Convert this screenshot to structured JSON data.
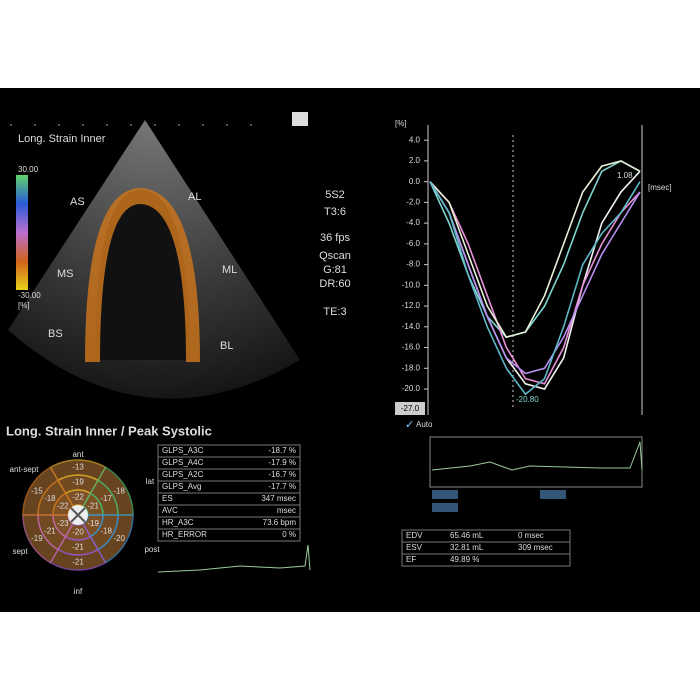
{
  "header": {
    "title": "Long. Strain Inner",
    "color_bar": {
      "max": "30.00",
      "min": "-30.00",
      "unit": "[%]"
    }
  },
  "segments": [
    "AS",
    "AL",
    "MS",
    "ML",
    "BS",
    "BL"
  ],
  "settings": [
    "5S2",
    "T3:6",
    "36 fps",
    "Qscan",
    "G:81",
    "DR:60",
    "TE:3"
  ],
  "bullseye": {
    "title": "Long. Strain Inner / Peak Systolic",
    "walls": [
      "ant",
      "lat",
      "post",
      "inf",
      "sept",
      "ant-sept"
    ],
    "outer": [
      -13,
      -18,
      -20,
      -21,
      -19,
      -15
    ],
    "mid": [
      -19,
      -17,
      -18,
      -21,
      -21,
      -18
    ],
    "inner": [
      -22,
      -21,
      -19,
      -20,
      -23,
      -22
    ]
  },
  "results_table": {
    "rows": [
      [
        "GLPS_A3C",
        "-18.7 %"
      ],
      [
        "GLPS_A4C",
        "-17.9 %"
      ],
      [
        "GLPS_A2C",
        "-16.7 %"
      ],
      [
        "GLPS_Avg",
        "-17.7 %"
      ],
      [
        "ES",
        "347 msec"
      ],
      [
        "AVC",
        "msec"
      ],
      [
        "HR_A3C",
        "73.6 bpm"
      ],
      [
        "HR_ERROR",
        "0 %"
      ]
    ]
  },
  "chart_data": {
    "type": "line",
    "ylabel": "[%]",
    "xlabel": "[msec]",
    "ylim": [
      -22,
      4.5
    ],
    "yticks": [
      {
        "value": 4,
        "label": "4.0"
      },
      {
        "value": 2,
        "label": "2.0"
      },
      {
        "value": 0,
        "label": "0.0"
      },
      {
        "value": -2,
        "label": "-2.0"
      },
      {
        "value": -4,
        "label": "-4.0"
      },
      {
        "value": -6,
        "label": "-6.0"
      },
      {
        "value": -8,
        "label": "-8.0"
      },
      {
        "value": -10,
        "label": "-10.0"
      },
      {
        "value": -12,
        "label": "-12.0"
      },
      {
        "value": -14,
        "label": "-14.0"
      },
      {
        "value": -16,
        "label": "-16.0"
      },
      {
        "value": -18,
        "label": "-18.0"
      },
      {
        "value": -20,
        "label": "-20.0"
      }
    ],
    "annotations": [
      "1.08",
      "-20.80",
      "-27.0",
      "Auto"
    ],
    "series": [
      {
        "color": "#f2f2f2",
        "values": [
          0,
          -3,
          -8,
          -13,
          -17,
          -19.5,
          -20,
          -17,
          -10,
          -4,
          -1,
          1
        ]
      },
      {
        "color": "#7fd6d0",
        "values": [
          0,
          -4,
          -9,
          -13,
          -15,
          -14.5,
          -12,
          -8,
          -3,
          1,
          2,
          1
        ]
      },
      {
        "color": "#e890d8",
        "values": [
          0,
          -2,
          -6,
          -11,
          -16,
          -19,
          -19.5,
          -16,
          -10,
          -6,
          -3,
          -1
        ]
      },
      {
        "color": "#e8f0d8",
        "values": [
          0,
          -2,
          -7,
          -12,
          -15,
          -14.5,
          -11,
          -6,
          -1,
          1.5,
          2,
          1
        ]
      },
      {
        "color": "#b78ef0",
        "values": [
          0,
          -3,
          -8,
          -13,
          -17,
          -18.5,
          -18,
          -15,
          -11,
          -7,
          -4,
          -1
        ]
      },
      {
        "color": "#5fb8c8",
        "values": [
          0,
          -3,
          -9,
          -14,
          -18,
          -20.5,
          -19,
          -14,
          -8,
          -5,
          -3,
          0
        ]
      }
    ]
  },
  "volume_table": {
    "rows": [
      [
        "EDV",
        "65.46 mL",
        "0 msec"
      ],
      [
        "ESV",
        "32.81 mL",
        "309 msec"
      ],
      [
        "EF",
        "49.89 %",
        ""
      ]
    ]
  }
}
